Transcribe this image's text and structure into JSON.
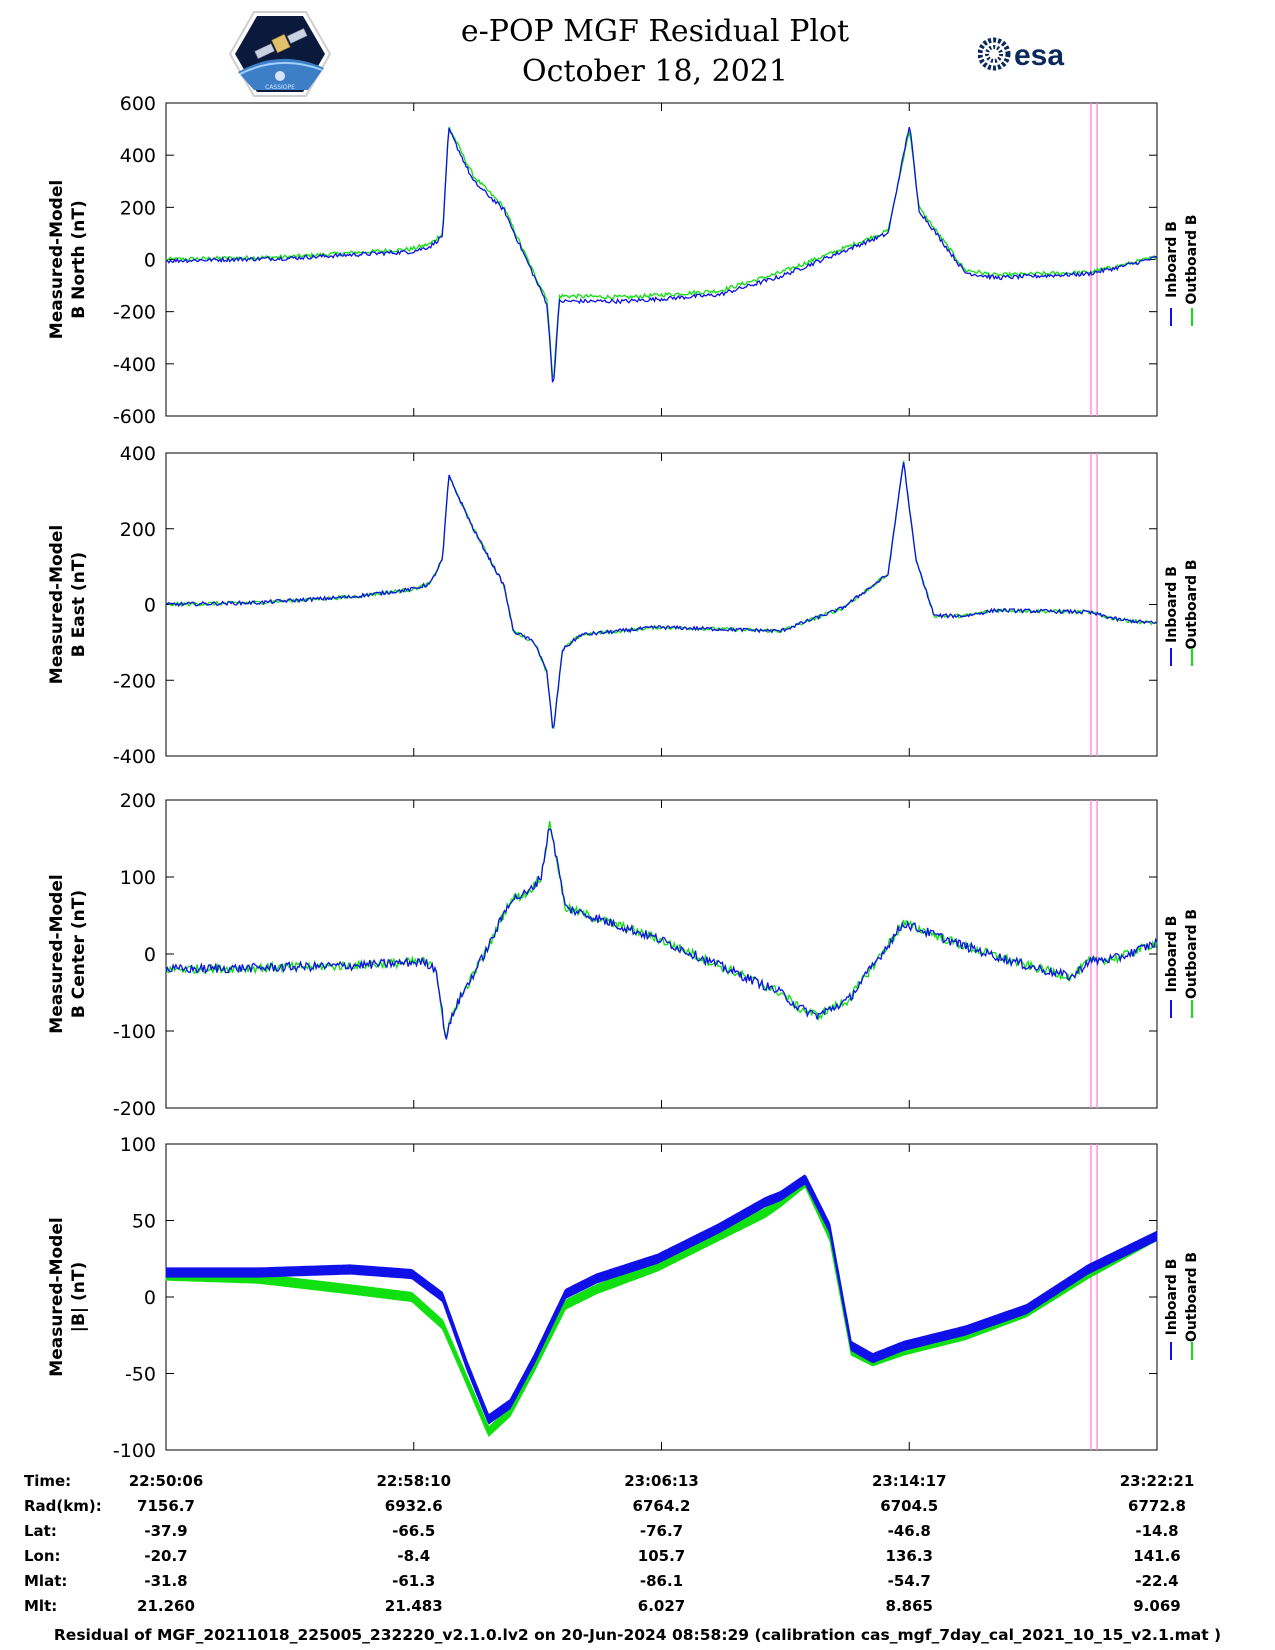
{
  "header": {
    "title_line1": "e-POP MGF Residual Plot",
    "title_line2": "October 18, 2021",
    "left_logo_text": "CASSIOPE",
    "right_logo_text": "esa"
  },
  "colors": {
    "inboard": "#1010e8",
    "outboard": "#10e010",
    "marker": "#ff88dd",
    "axis": "#000000"
  },
  "legend": {
    "inboard": "Inboard B",
    "outboard": "Outboard B"
  },
  "x_axis": {
    "tick_labels": [
      "22:50:06",
      "22:58:10",
      "23:06:13",
      "23:14:17",
      "23:22:21"
    ],
    "range_minutes": [
      0,
      32.25
    ],
    "marker_times_minutes": [
      30.1,
      30.3
    ]
  },
  "chart_data": [
    {
      "type": "line",
      "id": "north",
      "ylabel_line1": "Measured-Model",
      "ylabel_line2": "B North (nT)",
      "ylim": [
        -600,
        600
      ],
      "yticks": [
        -600,
        -400,
        -200,
        0,
        200,
        400,
        600
      ],
      "noise": 8,
      "x": [
        0,
        2,
        4,
        6,
        8,
        8.6,
        9,
        9.2,
        10,
        11,
        11.3,
        12,
        12.4,
        12.6,
        12.8,
        13,
        15,
        18,
        20,
        22,
        23.5,
        24.2,
        24.5,
        25,
        26,
        27,
        30,
        31,
        32.25
      ],
      "series": [
        {
          "name": "Outboard B",
          "values": [
            0,
            5,
            10,
            25,
            40,
            60,
            100,
            510,
            320,
            200,
            120,
            -60,
            -150,
            -480,
            -140,
            -140,
            -145,
            -120,
            -50,
            40,
            110,
            500,
            200,
            120,
            -40,
            -60,
            -50,
            -25,
            10
          ]
        },
        {
          "name": "Inboard B",
          "values": [
            -5,
            0,
            5,
            18,
            30,
            50,
            90,
            500,
            300,
            190,
            110,
            -70,
            -170,
            -500,
            -160,
            -160,
            -160,
            -135,
            -65,
            30,
            100,
            520,
            190,
            110,
            -50,
            -70,
            -55,
            -30,
            8
          ]
        }
      ]
    },
    {
      "type": "line",
      "id": "east",
      "ylabel_line1": "Measured-Model",
      "ylabel_line2": "B East (nT)",
      "ylim": [
        -400,
        400
      ],
      "yticks": [
        -400,
        -200,
        0,
        200,
        400
      ],
      "noise": 5,
      "x": [
        0,
        3,
        6,
        8,
        8.6,
        9,
        9.2,
        10,
        11,
        11.3,
        12,
        12.4,
        12.6,
        12.9,
        13.5,
        16,
        20,
        22,
        23.5,
        24,
        24.4,
        25,
        26,
        27,
        30,
        31,
        32.25
      ],
      "series": [
        {
          "name": "Outboard B",
          "values": [
            0,
            5,
            20,
            40,
            55,
            120,
            340,
            200,
            50,
            -70,
            -100,
            -180,
            -340,
            -120,
            -80,
            -60,
            -70,
            -10,
            80,
            380,
            120,
            -30,
            -30,
            -15,
            -20,
            -40,
            -50
          ]
        },
        {
          "name": "Inboard B",
          "values": [
            0,
            5,
            20,
            40,
            55,
            120,
            340,
            200,
            50,
            -70,
            -100,
            -180,
            -340,
            -120,
            -80,
            -60,
            -70,
            -10,
            80,
            380,
            120,
            -30,
            -30,
            -15,
            -20,
            -40,
            -50
          ]
        }
      ]
    },
    {
      "type": "line",
      "id": "center",
      "ylabel_line1": "Measured-Model",
      "ylabel_line2": "B Center (nT)",
      "ylim": [
        -200,
        200
      ],
      "yticks": [
        -200,
        -100,
        0,
        100,
        200
      ],
      "noise": 6,
      "x": [
        0,
        3,
        6,
        8.4,
        8.8,
        9.1,
        9.4,
        10.5,
        11.2,
        11.8,
        12.2,
        12.5,
        13,
        16,
        20,
        20.6,
        21.2,
        22.2,
        24,
        26,
        28,
        29.5,
        30,
        31,
        32.25
      ],
      "series": [
        {
          "name": "Outboard B",
          "values": [
            -20,
            -18,
            -15,
            -10,
            -20,
            -110,
            -70,
            10,
            70,
            80,
            100,
            170,
            60,
            20,
            -50,
            -70,
            -80,
            -60,
            40,
            10,
            -15,
            -30,
            -10,
            -5,
            15
          ]
        },
        {
          "name": "Inboard B",
          "values": [
            -20,
            -18,
            -15,
            -10,
            -20,
            -110,
            -70,
            10,
            70,
            80,
            100,
            170,
            60,
            20,
            -50,
            -70,
            -80,
            -60,
            40,
            10,
            -15,
            -30,
            -10,
            -5,
            15
          ]
        }
      ]
    },
    {
      "type": "line",
      "id": "total",
      "ylabel_line1": "Measured-Model",
      "ylabel_line2": "|B| (nT)",
      "ylim": [
        -100,
        100
      ],
      "yticks": [
        -100,
        -50,
        0,
        50,
        100
      ],
      "band": 6,
      "x": [
        0,
        3,
        6,
        8,
        9,
        9.8,
        10.5,
        11.2,
        12,
        13,
        14,
        16,
        18,
        19.5,
        20,
        20.8,
        21.6,
        22.3,
        23,
        24,
        26,
        28,
        30,
        32.25
      ],
      "series": [
        {
          "name": "Outboard B",
          "values": [
            14,
            12,
            5,
            0,
            -18,
            -55,
            -88,
            -75,
            -45,
            -5,
            5,
            20,
            40,
            55,
            62,
            75,
            40,
            -35,
            -42,
            -35,
            -25,
            -10,
            15,
            40
          ]
        },
        {
          "name": "Inboard B",
          "values": [
            16,
            16,
            18,
            15,
            0,
            -45,
            -80,
            -70,
            -40,
            2,
            12,
            25,
            45,
            62,
            66,
            77,
            45,
            -32,
            -40,
            -32,
            -22,
            -8,
            18,
            40
          ]
        }
      ]
    }
  ],
  "orbit_table": {
    "row_labels": [
      "Time:",
      "Rad(km):",
      "Lat:",
      "Lon:",
      "Mlat:",
      "Mlt:"
    ],
    "columns": [
      [
        "22:50:06",
        "7156.7",
        "-37.9",
        "-20.7",
        "-31.8",
        "21.260"
      ],
      [
        "22:58:10",
        "6932.6",
        "-66.5",
        "-8.4",
        "-61.3",
        "21.483"
      ],
      [
        "23:06:13",
        "6764.2",
        "-76.7",
        "105.7",
        "-86.1",
        "6.027"
      ],
      [
        "23:14:17",
        "6704.5",
        "-46.8",
        "136.3",
        "-54.7",
        "8.865"
      ],
      [
        "23:22:21",
        "6772.8",
        "-14.8",
        "141.6",
        "-22.4",
        "9.069"
      ]
    ]
  },
  "footer_text": "Residual of MGF_20211018_225005_232220_v2.1.0.lv2 on 20-Jun-2024 08:58:29 (calibration cas_mgf_7day_cal_2021_10_15_v2.1.mat )"
}
